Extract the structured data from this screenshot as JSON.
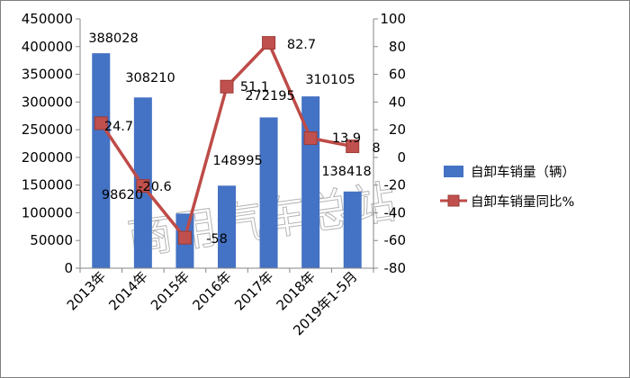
{
  "chart_data": {
    "type": "bar+line",
    "categories": [
      "2013年",
      "2014年",
      "2015年",
      "2016年",
      "2017年",
      "2018年",
      "2019年1-5月"
    ],
    "series": [
      {
        "name": "自卸车销量（辆）",
        "type": "bar",
        "axis": "left",
        "color": "#4472c4",
        "values": [
          388028,
          308210,
          98620,
          148995,
          272195,
          310105,
          138418
        ],
        "labels": [
          "388028",
          "308210",
          "98620",
          "148995",
          "272195",
          "310105",
          "138418"
        ]
      },
      {
        "name": "自卸车销量同比%",
        "type": "line",
        "axis": "right",
        "color": "#be4b48",
        "marker_color": "#c0504d",
        "values": [
          24.7,
          -20.6,
          -58,
          51.1,
          82.7,
          13.9,
          8
        ],
        "labels": [
          "24.7",
          "-20.6",
          "-58",
          "51.1",
          "82.7",
          "13.9",
          "8"
        ]
      }
    ],
    "y_left": {
      "ylim": [
        0,
        450000
      ],
      "ticks": [
        "0",
        "50000",
        "100000",
        "150000",
        "200000",
        "250000",
        "300000",
        "350000",
        "400000",
        "450000"
      ]
    },
    "y_right": {
      "ylim": [
        -80,
        100
      ],
      "ticks": [
        "-80",
        "-60",
        "-40",
        "-20",
        "0",
        "20",
        "40",
        "60",
        "80",
        "100"
      ]
    },
    "grid": false,
    "legend": "right"
  },
  "watermark": "商用汽车总站"
}
